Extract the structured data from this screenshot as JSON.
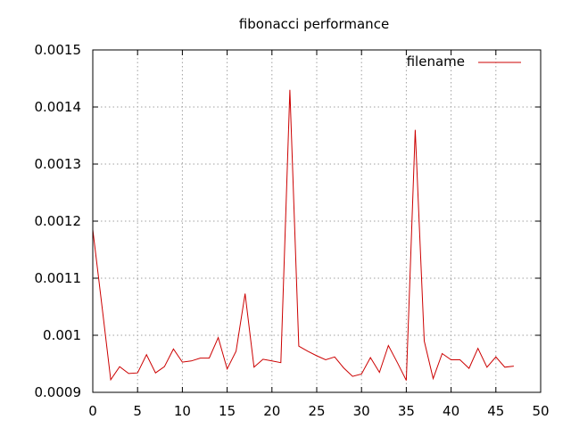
{
  "chart_data": {
    "type": "line",
    "title": "fibonacci performance",
    "xlabel": "",
    "ylabel": "",
    "xlim": [
      0,
      50
    ],
    "ylim": [
      0.0009,
      0.0015
    ],
    "x_ticks": [
      "0",
      "5",
      "10",
      "15",
      "20",
      "25",
      "30",
      "35",
      "40",
      "45",
      "50"
    ],
    "y_ticks": [
      "0.0009",
      "0.001",
      "0.0011",
      "0.0012",
      "0.0013",
      "0.0014",
      "0.0015"
    ],
    "grid": true,
    "legend_position": "top-right",
    "series": [
      {
        "name": "filename",
        "color": "#cc0000",
        "x": [
          0,
          1,
          2,
          3,
          4,
          5,
          6,
          7,
          8,
          9,
          10,
          11,
          12,
          13,
          14,
          15,
          16,
          17,
          18,
          19,
          20,
          21,
          22,
          23,
          24,
          25,
          26,
          27,
          28,
          29,
          30,
          31,
          32,
          33,
          34,
          35,
          36,
          37,
          38,
          39,
          40,
          41,
          42,
          43,
          44,
          45,
          46,
          47
        ],
        "y": [
          0.001185,
          0.001055,
          0.000922,
          0.000945,
          0.000933,
          0.000934,
          0.000966,
          0.000934,
          0.000945,
          0.000976,
          0.000953,
          0.000955,
          0.00096,
          0.00096,
          0.000996,
          0.000941,
          0.000972,
          0.001073,
          0.000944,
          0.000958,
          0.000955,
          0.000952,
          0.00143,
          0.000981,
          0.000972,
          0.000964,
          0.000957,
          0.000962,
          0.000943,
          0.000928,
          0.000932,
          0.000961,
          0.000935,
          0.000982,
          0.000952,
          0.000921,
          0.00136,
          0.00099,
          0.000924,
          0.000968,
          0.000957,
          0.000957,
          0.000942,
          0.000977,
          0.000944,
          0.000962,
          0.000944,
          0.000946
        ]
      }
    ]
  }
}
